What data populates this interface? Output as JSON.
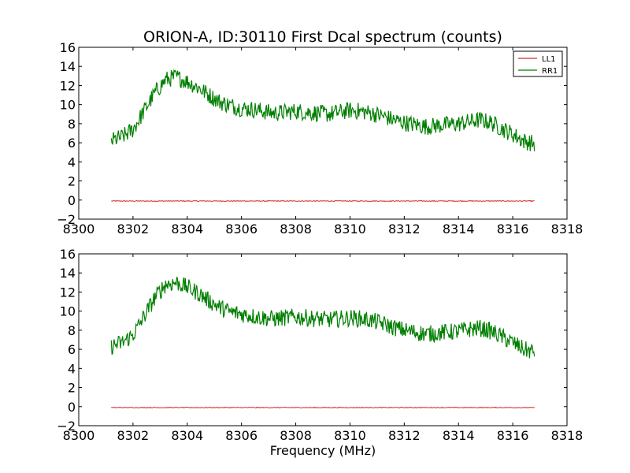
{
  "chart_data": {
    "type": "line",
    "title": "ORION-A, ID:30110 First Dcal spectrum (counts)",
    "legend": {
      "placement": "top-right",
      "entries": [
        "LL1",
        "RR1"
      ]
    },
    "colors": {
      "LL1": "#d62728",
      "RR1": "#007f00"
    },
    "grid": false,
    "xlim": [
      8300,
      8318
    ],
    "ylim": [
      -2,
      16
    ],
    "x_ticks": [
      "8300",
      "8302",
      "8304",
      "8306",
      "8308",
      "8310",
      "8312",
      "8314",
      "8316",
      "8318"
    ],
    "y_ticks": [
      "16",
      "14",
      "12",
      "10",
      "8",
      "6",
      "4",
      "2",
      "0",
      "−2"
    ],
    "panels": [
      {
        "xlabel": "",
        "series": [
          {
            "name": "LL1",
            "x": [
              8301.2,
              8316.8
            ],
            "y": [
              -0.1,
              -0.1
            ]
          },
          {
            "name": "RR1",
            "x": [
              8301.2,
              8301.6,
              8302.0,
              8302.4,
              8302.8,
              8303.2,
              8303.6,
              8304.0,
              8304.4,
              8304.8,
              8305.2,
              8305.6,
              8306.0,
              8306.4,
              8306.8,
              8307.2,
              8307.6,
              8308.0,
              8308.4,
              8308.8,
              8309.2,
              8309.6,
              8310.0,
              8310.4,
              8310.8,
              8311.2,
              8311.6,
              8312.0,
              8312.4,
              8312.8,
              8313.2,
              8313.6,
              8314.0,
              8314.4,
              8314.8,
              8315.2,
              8315.6,
              8316.0,
              8316.4,
              8316.8
            ],
            "y": [
              6.2,
              6.6,
              7.4,
              9.3,
              11.2,
              12.6,
              12.9,
              12.4,
              11.8,
              11.0,
              10.3,
              9.9,
              9.6,
              9.5,
              9.3,
              9.1,
              9.2,
              9.3,
              9.2,
              9.1,
              9.0,
              9.2,
              9.4,
              9.3,
              9.1,
              8.8,
              8.4,
              8.1,
              7.9,
              7.7,
              7.8,
              7.9,
              8.0,
              8.2,
              8.4,
              8.1,
              7.5,
              6.9,
              6.2,
              5.9
            ]
          }
        ]
      },
      {
        "xlabel": "Frequency (MHz)",
        "series": [
          {
            "name": "LL1",
            "x": [
              8301.2,
              8316.8
            ],
            "y": [
              -0.1,
              -0.1
            ]
          },
          {
            "name": "RR1",
            "x": [
              8301.2,
              8301.6,
              8302.0,
              8302.4,
              8302.8,
              8303.2,
              8303.6,
              8304.0,
              8304.4,
              8304.8,
              8305.2,
              8305.6,
              8306.0,
              8306.4,
              8306.8,
              8307.2,
              8307.6,
              8308.0,
              8308.4,
              8308.8,
              8309.2,
              8309.6,
              8310.0,
              8310.4,
              8310.8,
              8311.2,
              8311.6,
              8312.0,
              8312.4,
              8312.8,
              8313.2,
              8313.6,
              8314.0,
              8314.4,
              8314.8,
              8315.2,
              8315.6,
              8316.0,
              8316.4,
              8316.8
            ],
            "y": [
              6.3,
              6.7,
              7.5,
              9.4,
              11.4,
              12.8,
              13.0,
              12.5,
              11.9,
              11.1,
              10.4,
              9.9,
              9.7,
              9.5,
              9.3,
              9.2,
              9.3,
              9.4,
              9.3,
              9.2,
              9.1,
              9.2,
              9.3,
              9.2,
              9.0,
              8.7,
              8.3,
              8.0,
              7.8,
              7.6,
              7.7,
              7.8,
              7.9,
              8.1,
              8.2,
              7.9,
              7.3,
              6.7,
              6.0,
              5.7
            ]
          }
        ]
      }
    ]
  }
}
